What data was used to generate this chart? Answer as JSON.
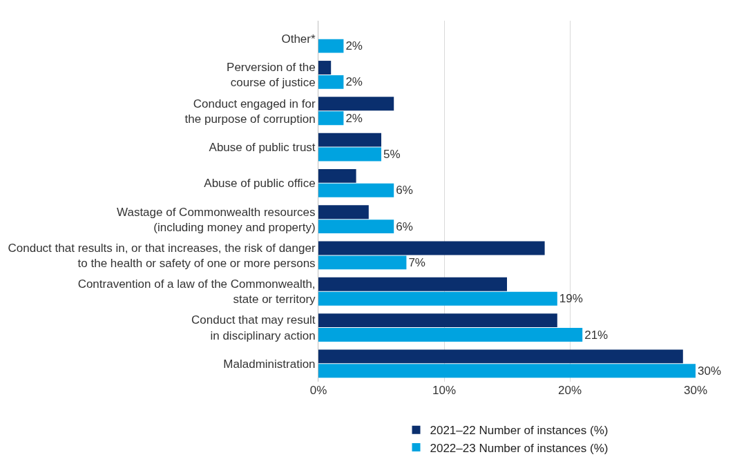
{
  "chart_data": {
    "type": "bar",
    "orientation": "horizontal",
    "categories": [
      "Other*",
      "Perversion of the\ncourse of justice",
      "Conduct engaged in for\nthe purpose of corruption",
      "Abuse of public trust",
      "Abuse of public office",
      "Wastage of Commonwealth resources\n(including money and property)",
      "Conduct that results in, or that increases, the risk of danger\nto the health or safety of one or more persons",
      "Contravention of a law of the Commonwealth,\nstate or territory",
      "Conduct that may result\nin disciplinary action",
      "Maladministration"
    ],
    "series": [
      {
        "name": "2021–22 Number of instances (%)",
        "color": "#0a2f6e",
        "values": [
          null,
          1,
          6,
          5,
          3,
          4,
          18,
          15,
          19,
          29
        ]
      },
      {
        "name": "2022–23 Number of instances (%)",
        "color": "#00a3e0",
        "values": [
          2,
          2,
          2,
          5,
          6,
          6,
          7,
          19,
          21,
          30
        ],
        "value_labels": [
          "2%",
          "2%",
          "2%",
          "5%",
          "6%",
          "6%",
          "7%",
          "19%",
          "21%",
          "30%"
        ]
      }
    ],
    "xlim": [
      0,
      30
    ],
    "xticks": [
      {
        "value": 0,
        "label": "0%"
      },
      {
        "value": 10,
        "label": "10%"
      },
      {
        "value": 20,
        "label": "20%"
      },
      {
        "value": 30,
        "label": "30%"
      }
    ],
    "grid": "x",
    "legend": "bottom"
  }
}
